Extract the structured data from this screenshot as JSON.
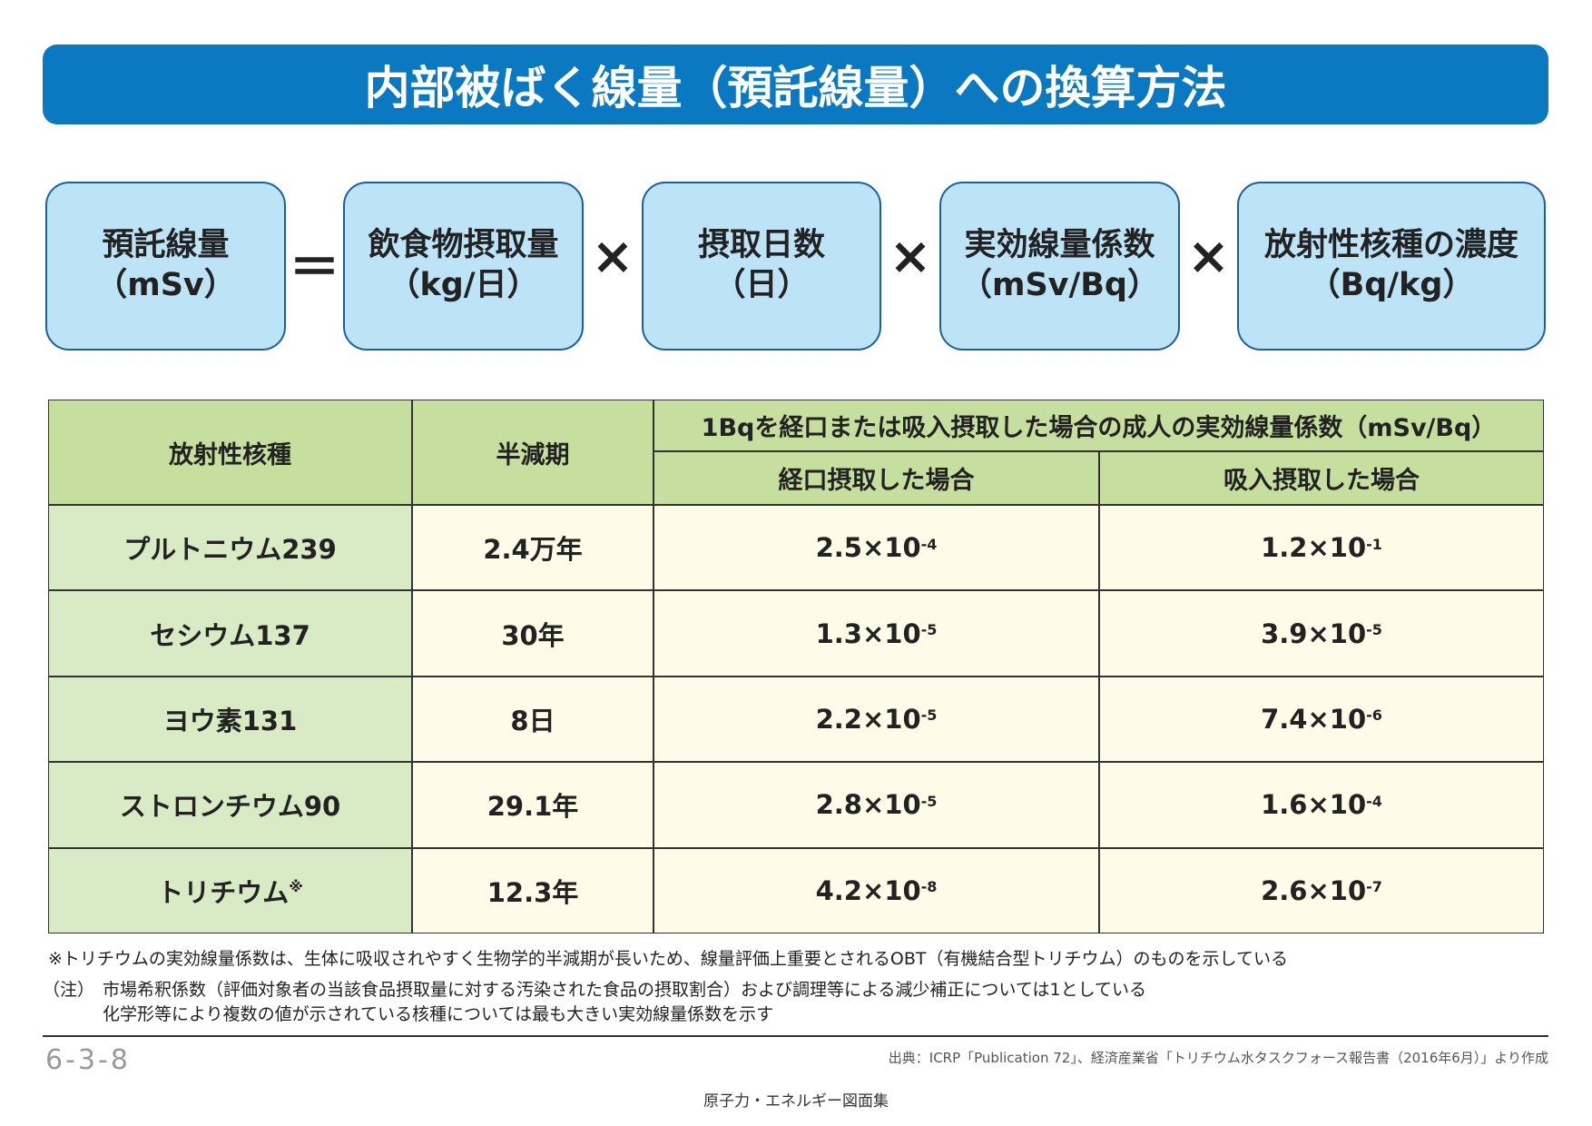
{
  "header": {
    "title": "内部被ばく線量（預託線量）への換算方法"
  },
  "formula": {
    "boxes": [
      {
        "label": "預託線量",
        "unit": "（mSv）"
      },
      {
        "label": "飲食物摂取量",
        "unit": "（kg/日）"
      },
      {
        "label": "摂取日数",
        "unit": "（日）"
      },
      {
        "label": "実効線量係数",
        "unit": "（mSv/Bq）"
      },
      {
        "label": "放射性核種の濃度",
        "unit": "（Bq/kg）"
      }
    ],
    "operators": [
      "＝",
      "×",
      "×",
      "×"
    ]
  },
  "table": {
    "header": {
      "nuclide": "放射性核種",
      "half_life": "半減期",
      "coefficient_group": "1Bqを経口または吸入摂取した場合の成人の実効線量係数（mSv/Bq）",
      "ingestion": "経口摂取した場合",
      "inhalation": "吸入摂取した場合"
    },
    "rows": [
      {
        "nuclide": "プルトニウム239",
        "half_life": "2.4万年",
        "ingestion": {
          "base": "2.5×10",
          "exp": "-4"
        },
        "inhalation": {
          "base": "1.2×10",
          "exp": "-1"
        }
      },
      {
        "nuclide": "セシウム137",
        "half_life": "30年",
        "ingestion": {
          "base": "1.3×10",
          "exp": "-5"
        },
        "inhalation": {
          "base": "3.9×10",
          "exp": "-5"
        }
      },
      {
        "nuclide": "ヨウ素131",
        "half_life": "8日",
        "ingestion": {
          "base": "2.2×10",
          "exp": "-5"
        },
        "inhalation": {
          "base": "7.4×10",
          "exp": "-6"
        }
      },
      {
        "nuclide": "ストロンチウム90",
        "half_life": "29.1年",
        "ingestion": {
          "base": "2.8×10",
          "exp": "-5"
        },
        "inhalation": {
          "base": "1.6×10",
          "exp": "-4"
        }
      },
      {
        "nuclide": "トリチウム",
        "mark": "※",
        "half_life": "12.3年",
        "ingestion": {
          "base": "4.2×10",
          "exp": "-8"
        },
        "inhalation": {
          "base": "2.6×10",
          "exp": "-7"
        }
      }
    ]
  },
  "notes": {
    "asterisk": "※トリチウムの実効線量係数は、生体に吸収されやすく生物学的半減期が長いため、線量評価上重要とされるOBT（有機結合型トリチウム）のものを示している",
    "label": "（注）",
    "lines": [
      "市場希釈係数（評価対象者の当該食品摂取量に対する汚染された食品の摂取割合）および調理等による減少補正については1としている",
      "化学形等により複数の値が示されている核種については最も大きい実効線量係数を示す"
    ]
  },
  "footer": {
    "page": "6-3-8",
    "source": "出典：ICRP「Publication 72」、経済産業省「トリチウム水タスクフォース報告書（2016年6月）」より作成",
    "publication": "原子力・エネルギー図面集"
  }
}
